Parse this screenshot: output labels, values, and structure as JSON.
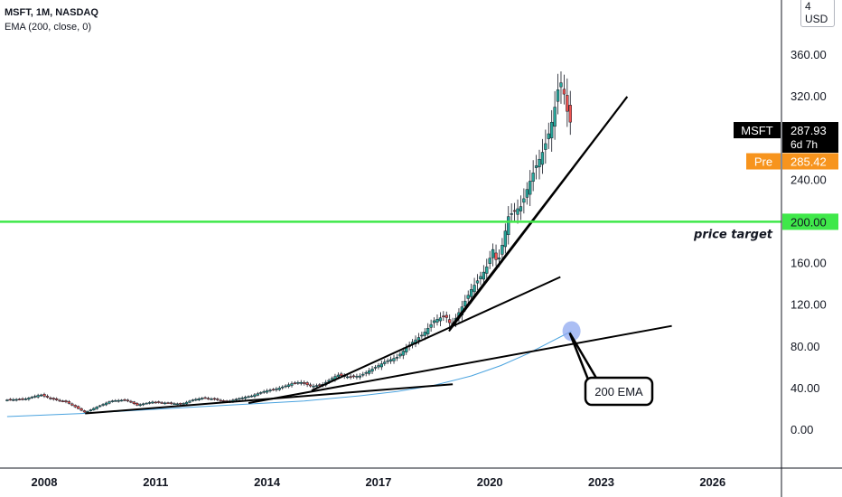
{
  "header": {
    "title": "MSFT, 1M, NASDAQ",
    "indicator": "EMA (200, close, 0)",
    "currency": "4 USD"
  },
  "chart_data": {
    "type": "candlestick",
    "symbol": "MSFT",
    "interval": "1M",
    "exchange": "NASDAQ",
    "y_axis_ticks": [
      "360.00",
      "320.00",
      "240.00",
      "160.00",
      "120.00",
      "80.00",
      "40.00",
      "0.00"
    ],
    "y_tick_values": [
      360,
      320,
      240,
      160,
      120,
      80,
      40,
      0
    ],
    "x_axis_ticks": [
      "2008",
      "2011",
      "2014",
      "2017",
      "2020",
      "2023",
      "2026"
    ],
    "x_tick_values": [
      2008,
      2011,
      2014,
      2017,
      2020,
      2023,
      2026
    ],
    "labels": {
      "symbol_tag": "MSFT",
      "last_price": "287.93",
      "countdown": "6d 7h",
      "pre_label": "Pre",
      "pre_price": "285.42",
      "target_price": "200.00",
      "target_text": "price target",
      "ema_callout": "200 EMA"
    },
    "target_level": 200,
    "price_series": [
      [
        2007.0,
        29
      ],
      [
        2007.5,
        30
      ],
      [
        2007.9,
        34
      ],
      [
        2008.2,
        30
      ],
      [
        2008.6,
        27
      ],
      [
        2008.9,
        21
      ],
      [
        2009.1,
        17
      ],
      [
        2009.4,
        22
      ],
      [
        2009.8,
        28
      ],
      [
        2010.2,
        29
      ],
      [
        2010.5,
        24
      ],
      [
        2010.9,
        27
      ],
      [
        2011.3,
        26
      ],
      [
        2011.7,
        25
      ],
      [
        2012.0,
        29
      ],
      [
        2012.3,
        31
      ],
      [
        2012.7,
        29
      ],
      [
        2012.9,
        27
      ],
      [
        2013.2,
        30
      ],
      [
        2013.6,
        33
      ],
      [
        2013.9,
        37
      ],
      [
        2014.3,
        40
      ],
      [
        2014.7,
        45
      ],
      [
        2014.9,
        46
      ],
      [
        2015.2,
        42
      ],
      [
        2015.5,
        44
      ],
      [
        2015.9,
        53
      ],
      [
        2016.2,
        51
      ],
      [
        2016.5,
        52
      ],
      [
        2016.9,
        60
      ],
      [
        2017.2,
        66
      ],
      [
        2017.5,
        70
      ],
      [
        2017.9,
        84
      ],
      [
        2018.2,
        92
      ],
      [
        2018.5,
        105
      ],
      [
        2018.8,
        110
      ],
      [
        2018.97,
        100
      ],
      [
        2019.2,
        115
      ],
      [
        2019.5,
        135
      ],
      [
        2019.9,
        155
      ],
      [
        2020.1,
        175
      ],
      [
        2020.2,
        158
      ],
      [
        2020.35,
        180
      ],
      [
        2020.5,
        205
      ],
      [
        2020.65,
        210
      ],
      [
        2020.85,
        215
      ],
      [
        2021.0,
        231
      ],
      [
        2021.2,
        250
      ],
      [
        2021.4,
        265
      ],
      [
        2021.55,
        280
      ],
      [
        2021.7,
        300
      ],
      [
        2021.85,
        330
      ],
      [
        2021.95,
        335
      ],
      [
        2022.05,
        310
      ],
      [
        2022.15,
        298
      ],
      [
        2022.22,
        288
      ]
    ],
    "ema_series": [
      [
        2007.0,
        13
      ],
      [
        2009.0,
        16
      ],
      [
        2011.0,
        20
      ],
      [
        2013.0,
        24
      ],
      [
        2015.0,
        28
      ],
      [
        2016.5,
        33
      ],
      [
        2017.5,
        37
      ],
      [
        2018.5,
        43
      ],
      [
        2019.5,
        52
      ],
      [
        2020.3,
        62
      ],
      [
        2021.0,
        73
      ],
      [
        2021.6,
        84
      ],
      [
        2022.2,
        95
      ]
    ],
    "trendlines": [
      {
        "from": [
          2009.1,
          16
        ],
        "to": [
          2019.0,
          44
        ]
      },
      {
        "from": [
          2013.5,
          26
        ],
        "to": [
          2024.9,
          100
        ]
      },
      {
        "from": [
          2015.2,
          38
        ],
        "to": [
          2021.9,
          147
        ]
      },
      {
        "from": [
          2018.9,
          95
        ],
        "to": [
          2023.7,
          320
        ]
      },
      {
        "from": [
          2018.9,
          97
        ],
        "to": [
          2023.7,
          320
        ]
      }
    ]
  }
}
